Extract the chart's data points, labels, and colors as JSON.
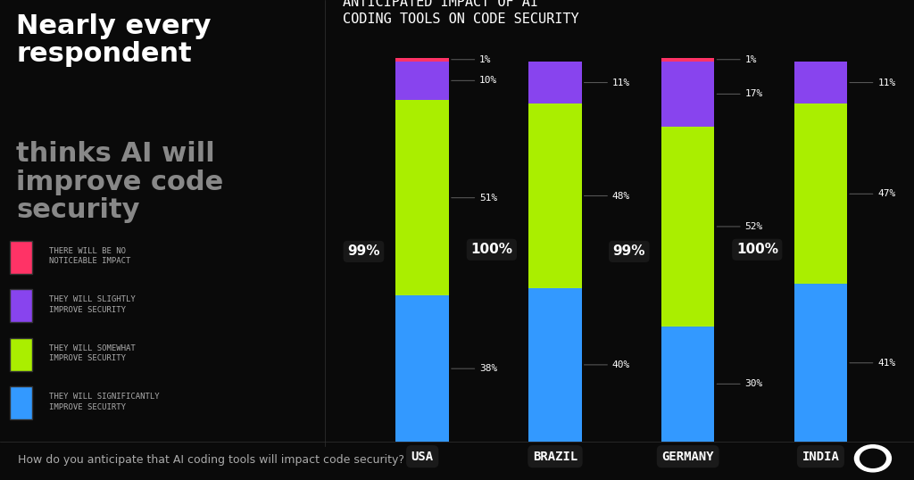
{
  "title": "ANTICIPATED IMPACT OF AI\nCODING TOOLS ON CODE SECURITY",
  "countries": [
    "USA",
    "BRAZIL",
    "GERMANY",
    "INDIA"
  ],
  "segments": {
    "no_impact": {
      "label": "THERE WILL BE NO\nNOTICEABLE IMPACT",
      "color": "#ff3366",
      "values": [
        1,
        0,
        1,
        0
      ]
    },
    "slightly": {
      "label": "THEY WILL SLIGHTLY\nIMPROVE SECURITY",
      "color": "#8844ee",
      "values": [
        10,
        11,
        17,
        11
      ]
    },
    "somewhat": {
      "label": "THEY WILL SOMEWHAT\nIMPROVE SECURITY",
      "color": "#aaee00",
      "values": [
        51,
        48,
        52,
        47
      ]
    },
    "significantly": {
      "label": "THEY WILL SIGNIFICANTLY\nIMPROVE SECUIRTY",
      "color": "#3399ff",
      "values": [
        38,
        40,
        30,
        41
      ]
    }
  },
  "totals": [
    "99%",
    "100%",
    "99%",
    "100%"
  ],
  "bg_color": "#0a0a0a",
  "text_color": "#ffffff",
  "label_color": "#cccccc",
  "left_title_white": "Nearly every\nrespondent",
  "left_title_gray": "thinks AI will\nimprove code\nsecurity",
  "footer_text": "How do you anticipate that AI coding tools will impact code security?",
  "bar_width": 0.4,
  "ylim": [
    0,
    105
  ]
}
